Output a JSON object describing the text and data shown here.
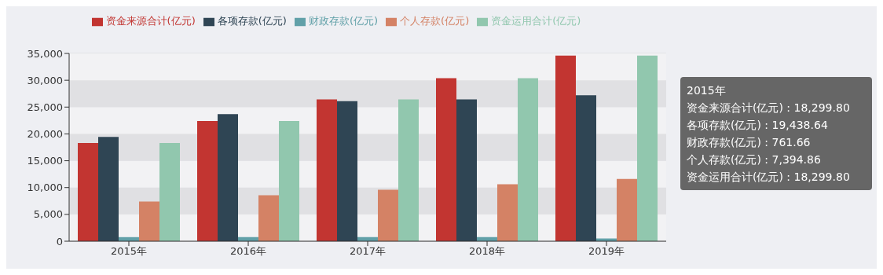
{
  "chart_data": {
    "type": "bar",
    "categories": [
      "2015年",
      "2016年",
      "2017年",
      "2018年",
      "2019年"
    ],
    "series": [
      {
        "name": "资金来源合计(亿元)",
        "color": "#c23531",
        "values": [
          18299.8,
          22400,
          26430,
          30390,
          34580
        ]
      },
      {
        "name": "各项存款(亿元)",
        "color": "#2f4554",
        "values": [
          19438.64,
          23700,
          26120,
          26450,
          27220
        ]
      },
      {
        "name": "财政存款(亿元)",
        "color": "#61a0a8",
        "values": [
          761.66,
          770,
          770,
          770,
          510
        ]
      },
      {
        "name": "个人存款(亿元)",
        "color": "#d48265",
        "values": [
          7394.86,
          8570,
          9590,
          10620,
          11590
        ]
      },
      {
        "name": "资金运用合计(亿元)",
        "color": "#91c7ae",
        "values": [
          18299.8,
          22400,
          26430,
          30390,
          34580
        ]
      }
    ],
    "ylim": [
      0,
      35000
    ],
    "yticks": [
      {
        "value": 0,
        "label": "0"
      },
      {
        "value": 5000,
        "label": "5,000"
      },
      {
        "value": 10000,
        "label": "10,000"
      },
      {
        "value": 15000,
        "label": "15,000"
      },
      {
        "value": 20000,
        "label": "20,000"
      },
      {
        "value": 25000,
        "label": "25,000"
      },
      {
        "value": 30000,
        "label": "30,000"
      },
      {
        "value": 35000,
        "label": "35,000"
      }
    ],
    "grid": "y",
    "legend": "top",
    "annotations": [
      "2015年",
      "资金来源合计(亿元) : 18,299.80",
      "各项存款(亿元) : 19,438.64",
      "财政存款(亿元) : 761.66",
      "个人存款(亿元) : 7,394.86",
      "资金运用合计(亿元) : 18,299.80"
    ]
  }
}
